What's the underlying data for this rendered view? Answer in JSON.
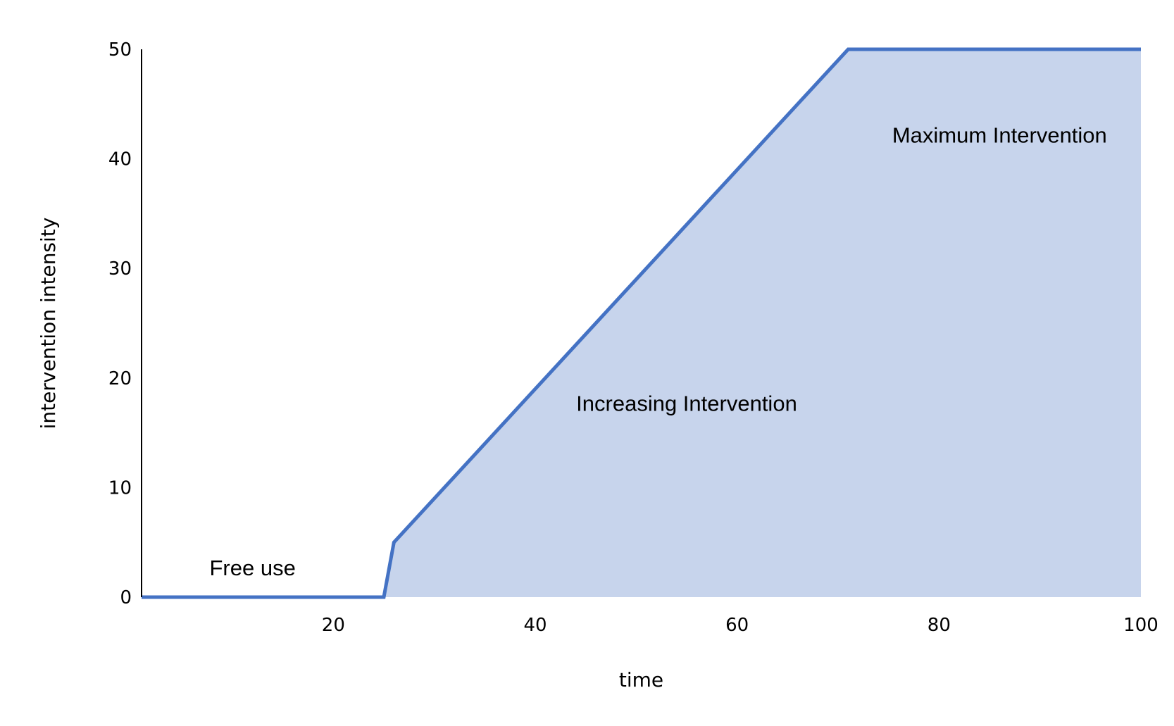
{
  "chart_data": {
    "type": "area",
    "title": "",
    "xlabel": "time",
    "ylabel": "intervention intensity",
    "xlim": [
      1,
      100
    ],
    "ylim": [
      0,
      50
    ],
    "x_ticks": [
      20,
      40,
      60,
      80,
      100
    ],
    "y_ticks": [
      0,
      10,
      20,
      30,
      40,
      50
    ],
    "grid": false,
    "legend": "none",
    "series": [
      {
        "x": [
          1,
          25,
          26,
          71,
          100
        ],
        "y": [
          0,
          0,
          5,
          50,
          50
        ],
        "line_color": "#4472C4",
        "fill_color": "#C7D4EC"
      }
    ],
    "annotations": [
      {
        "text": "Free use",
        "x": 12,
        "y": 2
      },
      {
        "text": "Increasing Intervention",
        "x": 55,
        "y": 17
      },
      {
        "text": "Maximum Intervention",
        "x": 86,
        "y": 41.5
      }
    ]
  }
}
